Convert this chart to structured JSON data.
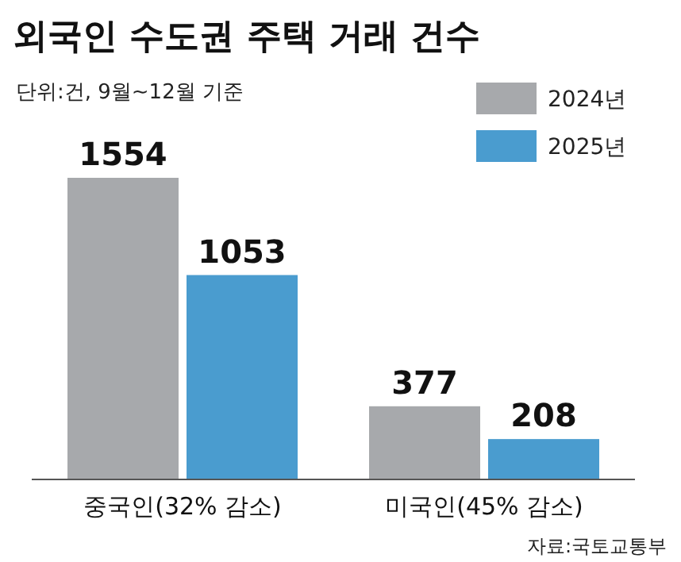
{
  "chart_data": {
    "type": "bar",
    "title": "외국인 수도권 주택 거래 건수",
    "subtitle": "단위:건, 9월~12월 기준",
    "categories": [
      "중국인(32% 감소)",
      "미국인(45% 감소)"
    ],
    "series": [
      {
        "name": "2024년",
        "color": "#a7a9ac",
        "values": [
          1554,
          377
        ]
      },
      {
        "name": "2025년",
        "color": "#4a9ccf",
        "values": [
          1053,
          208
        ]
      }
    ],
    "data_labels": true,
    "legend": "top right",
    "annotations": [
      "자료:국토교통부"
    ]
  }
}
